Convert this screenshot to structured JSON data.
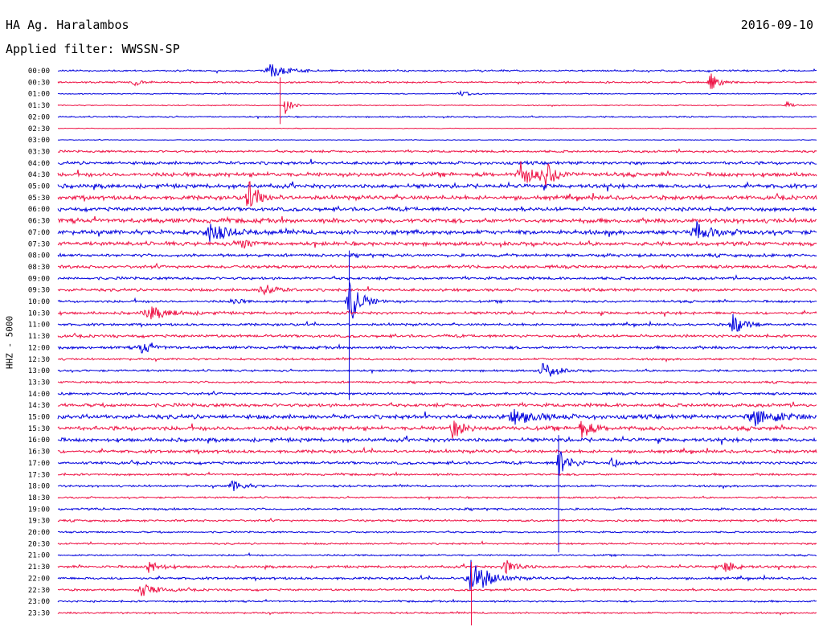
{
  "header": {
    "station": "HA Ag. Haralambos",
    "date": "2016-09-10",
    "filter": "Applied filter: WWSSN-SP"
  },
  "chart_data": {
    "type": "line",
    "title": "HA Ag. Haralambos",
    "ylabel": "HHZ - 5000",
    "grid": false,
    "legend": "none",
    "colors": [
      "#0000dd",
      "#ee1144"
    ],
    "tick_labels": [
      "00:00",
      "00:30",
      "01:00",
      "01:30",
      "02:00",
      "02:30",
      "03:00",
      "03:30",
      "04:00",
      "04:30",
      "05:00",
      "05:30",
      "06:00",
      "06:30",
      "07:00",
      "07:30",
      "08:00",
      "08:30",
      "09:00",
      "09:30",
      "10:00",
      "10:30",
      "11:00",
      "11:30",
      "12:00",
      "12:30",
      "13:00",
      "13:30",
      "14:00",
      "14:30",
      "15:00",
      "15:30",
      "16:00",
      "16:30",
      "17:00",
      "17:30",
      "18:00",
      "18:30",
      "19:00",
      "19:30",
      "20:00",
      "20:30",
      "21:00",
      "21:30",
      "22:00",
      "22:30",
      "23:00",
      "23:30"
    ],
    "noise_level": [
      1,
      1,
      0.6,
      0.6,
      0.8,
      0.4,
      0.4,
      1.3,
      1.8,
      2.4,
      2.4,
      2.4,
      2.2,
      2.6,
      2.6,
      2.2,
      1.8,
      1.8,
      1.6,
      1.6,
      1.4,
      1.6,
      1.4,
      1.6,
      1.6,
      1.2,
      1.2,
      1.2,
      1.4,
      2,
      2.4,
      2.4,
      2.2,
      1.8,
      1.6,
      1.2,
      1.2,
      1,
      1.2,
      1.2,
      1,
      1,
      1,
      1.4,
      1.4,
      1.2,
      1,
      1
    ],
    "events": [
      {
        "row": 0,
        "x": 0.28,
        "amp": 9,
        "dur": 0.03
      },
      {
        "row": 1,
        "x": 0.1,
        "amp": 6,
        "dur": 0.01
      },
      {
        "row": 1,
        "x": 0.86,
        "amp": 12,
        "dur": 0.015
      },
      {
        "row": 2,
        "x": 0.53,
        "amp": 4,
        "dur": 0.02
      },
      {
        "row": 3,
        "x": 0.3,
        "amp": 14,
        "dur": 0.01
      },
      {
        "row": 3,
        "x": 0.96,
        "amp": 5,
        "dur": 0.01
      },
      {
        "row": 9,
        "x": 0.61,
        "amp": 18,
        "dur": 0.02
      },
      {
        "row": 9,
        "x": 0.64,
        "amp": 20,
        "dur": 0.02
      },
      {
        "row": 11,
        "x": 0.25,
        "amp": 20,
        "dur": 0.02
      },
      {
        "row": 14,
        "x": 0.2,
        "amp": 12,
        "dur": 0.03
      },
      {
        "row": 14,
        "x": 0.84,
        "amp": 12,
        "dur": 0.03
      },
      {
        "row": 15,
        "x": 0.24,
        "amp": 8,
        "dur": 0.02
      },
      {
        "row": 19,
        "x": 0.27,
        "amp": 10,
        "dur": 0.02
      },
      {
        "row": 20,
        "x": 0.23,
        "amp": 10,
        "dur": 0.01
      },
      {
        "row": 20,
        "x": 0.385,
        "amp": 30,
        "dur": 0.02
      },
      {
        "row": 21,
        "x": 0.12,
        "amp": 8,
        "dur": 0.04
      },
      {
        "row": 22,
        "x": 0.89,
        "amp": 14,
        "dur": 0.02
      },
      {
        "row": 24,
        "x": 0.11,
        "amp": 8,
        "dur": 0.02
      },
      {
        "row": 26,
        "x": 0.64,
        "amp": 14,
        "dur": 0.02
      },
      {
        "row": 30,
        "x": 0.6,
        "amp": 8,
        "dur": 0.05
      },
      {
        "row": 30,
        "x": 0.92,
        "amp": 10,
        "dur": 0.05
      },
      {
        "row": 31,
        "x": 0.52,
        "amp": 12,
        "dur": 0.02
      },
      {
        "row": 31,
        "x": 0.69,
        "amp": 12,
        "dur": 0.02
      },
      {
        "row": 34,
        "x": 0.66,
        "amp": 18,
        "dur": 0.02
      },
      {
        "row": 34,
        "x": 0.73,
        "amp": 10,
        "dur": 0.01
      },
      {
        "row": 36,
        "x": 0.23,
        "amp": 8,
        "dur": 0.02
      },
      {
        "row": 43,
        "x": 0.12,
        "amp": 8,
        "dur": 0.02
      },
      {
        "row": 43,
        "x": 0.59,
        "amp": 10,
        "dur": 0.02
      },
      {
        "row": 43,
        "x": 0.88,
        "amp": 8,
        "dur": 0.02
      },
      {
        "row": 44,
        "x": 0.545,
        "amp": 26,
        "dur": 0.03
      },
      {
        "row": 45,
        "x": 0.11,
        "amp": 8,
        "dur": 0.03
      }
    ],
    "spikes": [
      {
        "row": 1,
        "x": 0.293,
        "len": 52
      },
      {
        "row": 16,
        "x": 0.384,
        "len": 180
      },
      {
        "row": 32,
        "x": 0.66,
        "len": 140
      },
      {
        "row": 43,
        "x": 0.545,
        "len": 95
      }
    ]
  }
}
